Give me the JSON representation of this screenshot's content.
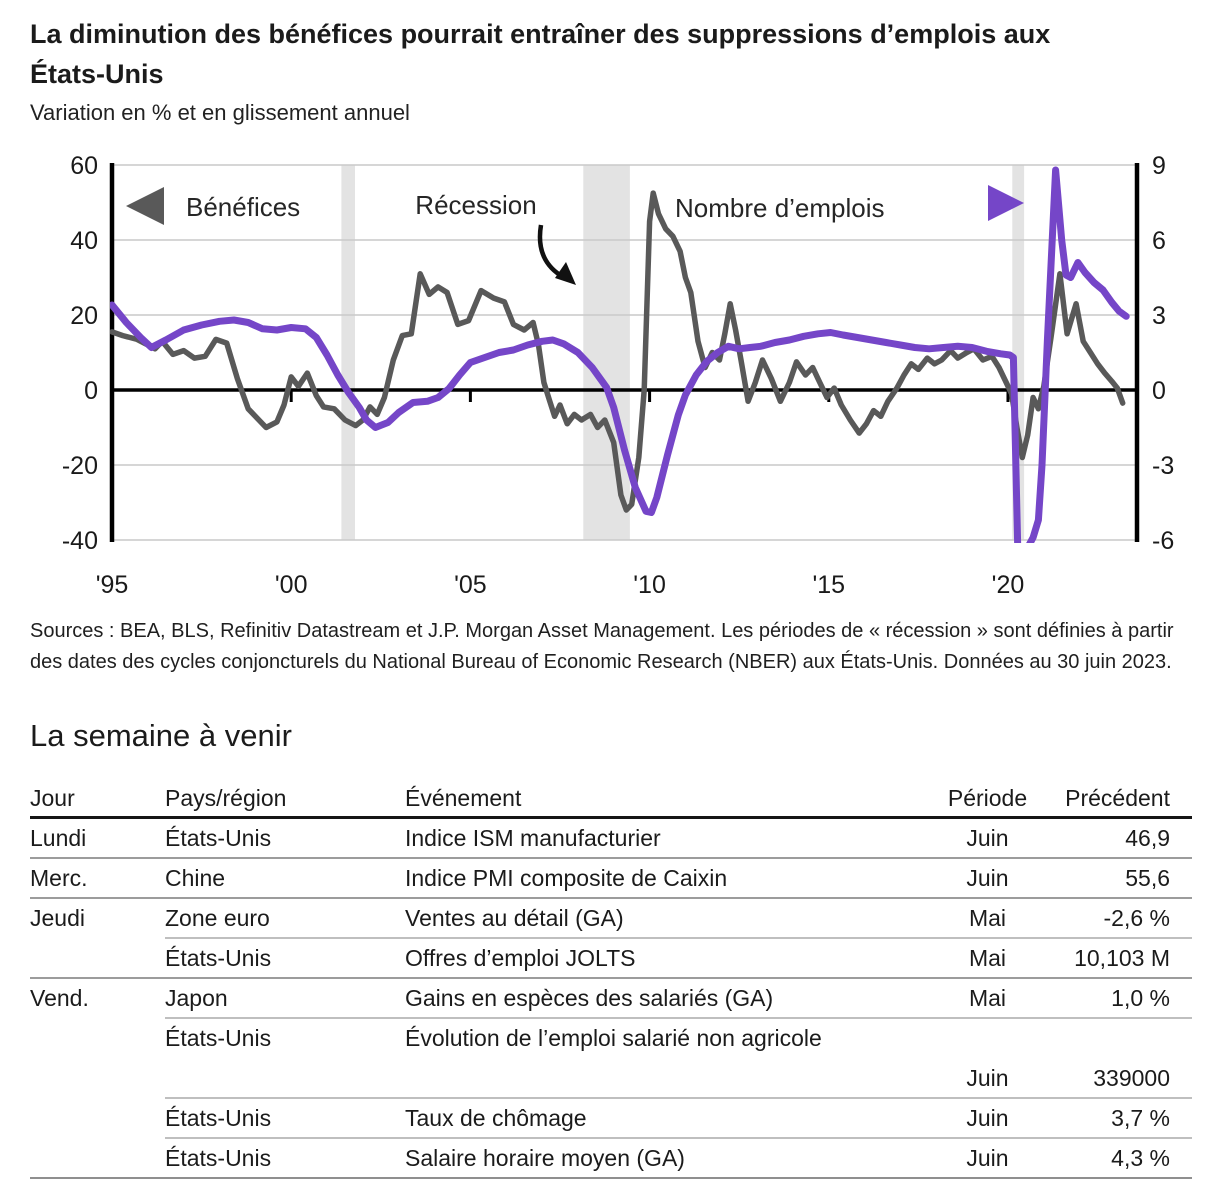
{
  "header": {
    "title_line1": "La diminution des bénéfices pourrait entraîner des suppressions d’emplois aux",
    "title_line2": "États-Unis",
    "subtitle": "Variation en % et en glissement annuel"
  },
  "chart_data": {
    "type": "line",
    "title": "La diminution des bénéfices pourrait entraîner des suppressions d’emplois aux États-Unis",
    "subtitle": "Variation en % et en glissement annuel",
    "legend": {
      "benefices": "Bénéfices",
      "recession": "Récession",
      "emplois": "Nombre d’emplois",
      "position": "top-inside"
    },
    "x_axis": {
      "min": 1995,
      "max": 2023.6,
      "tick_years": [
        1995,
        2000,
        2005,
        2010,
        2015,
        2020
      ],
      "tick_labels": [
        "'95",
        "'00",
        "'05",
        "'10",
        "'15",
        "'20"
      ]
    },
    "left_axis": {
      "min": -40,
      "max": 60,
      "ticks": [
        60,
        40,
        20,
        0,
        -20,
        -40
      ],
      "tick_labels": [
        "60",
        "40",
        "20",
        "0",
        "-20",
        "-40"
      ]
    },
    "right_axis": {
      "min": -6,
      "max": 9,
      "ticks": [
        9,
        6,
        3,
        0,
        -3,
        -6
      ],
      "tick_labels": [
        "9",
        "6",
        "3",
        "0",
        "-3",
        "-6"
      ]
    },
    "recessions": [
      [
        2001.4,
        2001.78
      ],
      [
        2008.15,
        2009.45
      ],
      [
        2020.12,
        2020.45
      ]
    ],
    "grid_color": "#C9C9C9",
    "band_color": "#E3E3E3",
    "series": [
      {
        "name": "Bénéfices",
        "axis": "left",
        "color": "#595959",
        "width": 5.5,
        "points": [
          [
            1995.0,
            15.5
          ],
          [
            1995.3,
            14.5
          ],
          [
            1995.7,
            13.5
          ],
          [
            1996.0,
            12
          ],
          [
            1996.2,
            11
          ],
          [
            1996.4,
            13
          ],
          [
            1996.7,
            9.5
          ],
          [
            1997.0,
            10.5
          ],
          [
            1997.3,
            8.5
          ],
          [
            1997.6,
            9
          ],
          [
            1997.9,
            13.5
          ],
          [
            1998.2,
            12.5
          ],
          [
            1998.5,
            3
          ],
          [
            1998.8,
            -5
          ],
          [
            1999.1,
            -8
          ],
          [
            1999.3,
            -10
          ],
          [
            1999.6,
            -8.5
          ],
          [
            1999.8,
            -4
          ],
          [
            2000.0,
            3.5
          ],
          [
            2000.2,
            1
          ],
          [
            2000.45,
            4.5
          ],
          [
            2000.7,
            -1.5
          ],
          [
            2000.9,
            -4.5
          ],
          [
            2001.2,
            -5
          ],
          [
            2001.5,
            -8
          ],
          [
            2001.8,
            -9.5
          ],
          [
            2002.0,
            -8
          ],
          [
            2002.2,
            -4.5
          ],
          [
            2002.4,
            -6.5
          ],
          [
            2002.6,
            -2
          ],
          [
            2002.85,
            8
          ],
          [
            2003.1,
            14.5
          ],
          [
            2003.35,
            15
          ],
          [
            2003.6,
            31
          ],
          [
            2003.85,
            25.5
          ],
          [
            2004.1,
            27.5
          ],
          [
            2004.35,
            26
          ],
          [
            2004.65,
            17.5
          ],
          [
            2004.95,
            18.5
          ],
          [
            2005.3,
            26.5
          ],
          [
            2005.65,
            24.5
          ],
          [
            2005.95,
            23.5
          ],
          [
            2006.2,
            17.5
          ],
          [
            2006.5,
            16
          ],
          [
            2006.75,
            18
          ],
          [
            2006.9,
            12
          ],
          [
            2007.05,
            2
          ],
          [
            2007.2,
            -2.5
          ],
          [
            2007.35,
            -7
          ],
          [
            2007.5,
            -4
          ],
          [
            2007.7,
            -9
          ],
          [
            2007.9,
            -6.5
          ],
          [
            2008.1,
            -8
          ],
          [
            2008.35,
            -6.5
          ],
          [
            2008.55,
            -10
          ],
          [
            2008.75,
            -8
          ],
          [
            2009.0,
            -14
          ],
          [
            2009.2,
            -28
          ],
          [
            2009.35,
            -32
          ],
          [
            2009.5,
            -30.5
          ],
          [
            2009.7,
            -18
          ],
          [
            2009.85,
            0
          ],
          [
            2010.0,
            45
          ],
          [
            2010.1,
            52.5
          ],
          [
            2010.25,
            47
          ],
          [
            2010.45,
            43
          ],
          [
            2010.65,
            41
          ],
          [
            2010.85,
            37
          ],
          [
            2011.0,
            30
          ],
          [
            2011.15,
            26
          ],
          [
            2011.35,
            13
          ],
          [
            2011.55,
            6
          ],
          [
            2011.75,
            10
          ],
          [
            2011.95,
            8
          ],
          [
            2012.1,
            15
          ],
          [
            2012.25,
            23
          ],
          [
            2012.4,
            16
          ],
          [
            2012.55,
            8
          ],
          [
            2012.75,
            -3
          ],
          [
            2012.95,
            2
          ],
          [
            2013.15,
            8
          ],
          [
            2013.4,
            3
          ],
          [
            2013.65,
            -3
          ],
          [
            2013.9,
            2
          ],
          [
            2014.1,
            7.5
          ],
          [
            2014.35,
            4
          ],
          [
            2014.55,
            6
          ],
          [
            2014.75,
            2
          ],
          [
            2014.95,
            -2
          ],
          [
            2015.15,
            0.5
          ],
          [
            2015.35,
            -4
          ],
          [
            2015.6,
            -8
          ],
          [
            2015.85,
            -11.5
          ],
          [
            2016.05,
            -9
          ],
          [
            2016.25,
            -5.5
          ],
          [
            2016.45,
            -7
          ],
          [
            2016.65,
            -3
          ],
          [
            2016.9,
            0.5
          ],
          [
            2017.1,
            4
          ],
          [
            2017.3,
            7
          ],
          [
            2017.5,
            5.5
          ],
          [
            2017.75,
            8.5
          ],
          [
            2017.95,
            7
          ],
          [
            2018.15,
            8
          ],
          [
            2018.4,
            10.5
          ],
          [
            2018.6,
            8.5
          ],
          [
            2018.85,
            10
          ],
          [
            2019.05,
            11
          ],
          [
            2019.3,
            8
          ],
          [
            2019.55,
            9
          ],
          [
            2019.75,
            6
          ],
          [
            2019.95,
            2
          ],
          [
            2020.1,
            -1
          ],
          [
            2020.25,
            -10
          ],
          [
            2020.4,
            -18
          ],
          [
            2020.55,
            -12
          ],
          [
            2020.7,
            -2
          ],
          [
            2020.85,
            -5
          ],
          [
            2021.0,
            1
          ],
          [
            2021.2,
            14
          ],
          [
            2021.45,
            31
          ],
          [
            2021.65,
            15
          ],
          [
            2021.9,
            23
          ],
          [
            2022.1,
            13
          ],
          [
            2022.3,
            10
          ],
          [
            2022.5,
            7
          ],
          [
            2022.7,
            4.5
          ],
          [
            2022.9,
            2.3
          ],
          [
            2023.05,
            0.5
          ],
          [
            2023.2,
            -3.5
          ]
        ]
      },
      {
        "name": "Nombre d’emplois",
        "axis": "right",
        "color": "#7546C8",
        "width": 7,
        "points": [
          [
            1995.0,
            3.4
          ],
          [
            1995.4,
            2.7
          ],
          [
            1995.8,
            2.1
          ],
          [
            1996.1,
            1.7
          ],
          [
            1996.5,
            2.0
          ],
          [
            1997.0,
            2.4
          ],
          [
            1997.5,
            2.6
          ],
          [
            1998.0,
            2.75
          ],
          [
            1998.4,
            2.8
          ],
          [
            1998.8,
            2.7
          ],
          [
            1999.2,
            2.45
          ],
          [
            1999.6,
            2.4
          ],
          [
            2000.0,
            2.5
          ],
          [
            2000.4,
            2.45
          ],
          [
            2000.7,
            2.1
          ],
          [
            2001.0,
            1.4
          ],
          [
            2001.3,
            0.6
          ],
          [
            2001.6,
            -0.1
          ],
          [
            2001.9,
            -0.7
          ],
          [
            2002.1,
            -1.2
          ],
          [
            2002.35,
            -1.5
          ],
          [
            2002.7,
            -1.3
          ],
          [
            2003.0,
            -0.9
          ],
          [
            2003.4,
            -0.5
          ],
          [
            2003.8,
            -0.45
          ],
          [
            2004.1,
            -0.3
          ],
          [
            2004.4,
            0.05
          ],
          [
            2004.7,
            0.6
          ],
          [
            2005.0,
            1.1
          ],
          [
            2005.4,
            1.3
          ],
          [
            2005.8,
            1.5
          ],
          [
            2006.2,
            1.6
          ],
          [
            2006.6,
            1.8
          ],
          [
            2007.0,
            1.95
          ],
          [
            2007.3,
            2.0
          ],
          [
            2007.6,
            1.85
          ],
          [
            2008.0,
            1.5
          ],
          [
            2008.4,
            0.9
          ],
          [
            2008.8,
            0.1
          ],
          [
            2009.0,
            -0.7
          ],
          [
            2009.3,
            -2.4
          ],
          [
            2009.6,
            -3.9
          ],
          [
            2009.9,
            -4.85
          ],
          [
            2010.05,
            -4.9
          ],
          [
            2010.2,
            -4.3
          ],
          [
            2010.5,
            -2.6
          ],
          [
            2010.8,
            -1.0
          ],
          [
            2011.0,
            -0.2
          ],
          [
            2011.3,
            0.6
          ],
          [
            2011.6,
            1.15
          ],
          [
            2011.9,
            1.5
          ],
          [
            2012.2,
            1.75
          ],
          [
            2012.5,
            1.65
          ],
          [
            2012.8,
            1.7
          ],
          [
            2013.1,
            1.75
          ],
          [
            2013.5,
            1.9
          ],
          [
            2013.9,
            2.0
          ],
          [
            2014.3,
            2.15
          ],
          [
            2014.7,
            2.25
          ],
          [
            2015.05,
            2.3
          ],
          [
            2015.4,
            2.2
          ],
          [
            2015.8,
            2.1
          ],
          [
            2016.2,
            2.0
          ],
          [
            2016.6,
            1.9
          ],
          [
            2017.0,
            1.8
          ],
          [
            2017.4,
            1.7
          ],
          [
            2017.8,
            1.65
          ],
          [
            2018.2,
            1.7
          ],
          [
            2018.6,
            1.75
          ],
          [
            2019.0,
            1.7
          ],
          [
            2019.4,
            1.55
          ],
          [
            2019.8,
            1.45
          ],
          [
            2020.05,
            1.4
          ],
          [
            2020.15,
            1.3
          ],
          [
            2020.3,
            -8
          ],
          [
            2020.45,
            -8
          ],
          [
            2020.55,
            -6.3
          ],
          [
            2020.7,
            -5.9
          ],
          [
            2020.85,
            -5.2
          ],
          [
            2020.95,
            -3.0
          ],
          [
            2021.1,
            2.0
          ],
          [
            2021.33,
            8.8
          ],
          [
            2021.5,
            6.0
          ],
          [
            2021.62,
            4.6
          ],
          [
            2021.75,
            4.5
          ],
          [
            2021.95,
            5.1
          ],
          [
            2022.15,
            4.7
          ],
          [
            2022.4,
            4.3
          ],
          [
            2022.65,
            4.0
          ],
          [
            2022.9,
            3.5
          ],
          [
            2023.1,
            3.15
          ],
          [
            2023.3,
            2.95
          ]
        ]
      }
    ]
  },
  "source_note": "Sources : BEA, BLS, Refinitiv Datastream et J.P. Morgan Asset Management. Les périodes de « récession » sont définies à partir des dates des cycles conjoncturels du National Bureau of Economic Research (NBER) aux États-Unis. Données au 30 juin 2023.",
  "week_ahead": {
    "heading": "La semaine à venir",
    "columns": [
      "Jour",
      "Pays/région",
      "Événement",
      "Période",
      "Précédent"
    ],
    "rows": [
      {
        "day": "Lundi",
        "region": "États-Unis",
        "event": "Indice ISM manufacturier",
        "period": "Juin",
        "previous": "46,9",
        "divider": "full"
      },
      {
        "day": "Merc.",
        "region": "Chine",
        "event": "Indice PMI composite de Caixin",
        "period": "Juin",
        "previous": "55,6",
        "divider": "full"
      },
      {
        "day": "Jeudi",
        "region": "Zone euro",
        "event": "Ventes au détail (GA)",
        "period": "Mai",
        "previous": "-2,6 %",
        "divider": "partial"
      },
      {
        "day": "",
        "region": "États-Unis",
        "event": "Offres d’emploi JOLTS",
        "period": "Mai",
        "previous": "10,103 M",
        "divider": "full"
      },
      {
        "day": "Vend.",
        "region": "Japon",
        "event": "Gains en espèces des salariés (GA)",
        "period": "Mai",
        "previous": "1,0 %",
        "divider": "partial"
      },
      {
        "day": "",
        "region": "États-Unis",
        "event": "Évolution de l’emploi salarié non agricole",
        "period": "",
        "previous": "",
        "divider": "none"
      },
      {
        "day": "",
        "region": "",
        "event": "",
        "period": "Juin",
        "previous": "339000",
        "divider": "partial"
      },
      {
        "day": "",
        "region": "États-Unis",
        "event": "Taux de chômage",
        "period": "Juin",
        "previous": "3,7 %",
        "divider": "partial"
      },
      {
        "day": "",
        "region": "États-Unis",
        "event": "Salaire horaire moyen (GA)",
        "period": "Juin",
        "previous": "4,3 %",
        "divider": "full-strong"
      }
    ]
  }
}
